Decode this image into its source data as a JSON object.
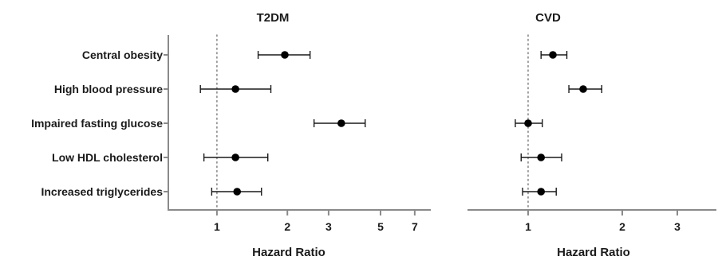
{
  "chart_data": [
    {
      "type": "forest",
      "title": "T2DM",
      "xlabel": "Hazard Ratio",
      "scale": "log",
      "xlim": [
        0.62,
        8.2
      ],
      "xticks": [
        1,
        2,
        3,
        5,
        7
      ],
      "xtick_labels": [
        "1",
        "2",
        "3",
        "5",
        "7"
      ],
      "reference_line": 1,
      "categories": [
        "Central obesity",
        "High blood pressure",
        "Impaired fasting glucose",
        "Low HDL cholesterol",
        "Increased triglycerides"
      ],
      "estimate": [
        1.95,
        1.2,
        3.4,
        1.2,
        1.22
      ],
      "ci_lower": [
        1.5,
        0.85,
        2.6,
        0.88,
        0.95
      ],
      "ci_upper": [
        2.5,
        1.7,
        4.3,
        1.65,
        1.55
      ]
    },
    {
      "type": "forest",
      "title": "CVD",
      "xlabel": "Hazard Ratio",
      "scale": "log",
      "xlim": [
        0.64,
        4.0
      ],
      "xticks": [
        1,
        2,
        3
      ],
      "xtick_labels": [
        "1",
        "2",
        "3"
      ],
      "reference_line": 1,
      "categories": [
        "Central obesity",
        "High blood pressure",
        "Impaired fasting glucose",
        "Low HDL cholesterol",
        "Increased triglycerides"
      ],
      "estimate": [
        1.2,
        1.5,
        1.0,
        1.1,
        1.1
      ],
      "ci_lower": [
        1.1,
        1.35,
        0.91,
        0.95,
        0.96
      ],
      "ci_upper": [
        1.33,
        1.72,
        1.11,
        1.28,
        1.23
      ]
    }
  ]
}
